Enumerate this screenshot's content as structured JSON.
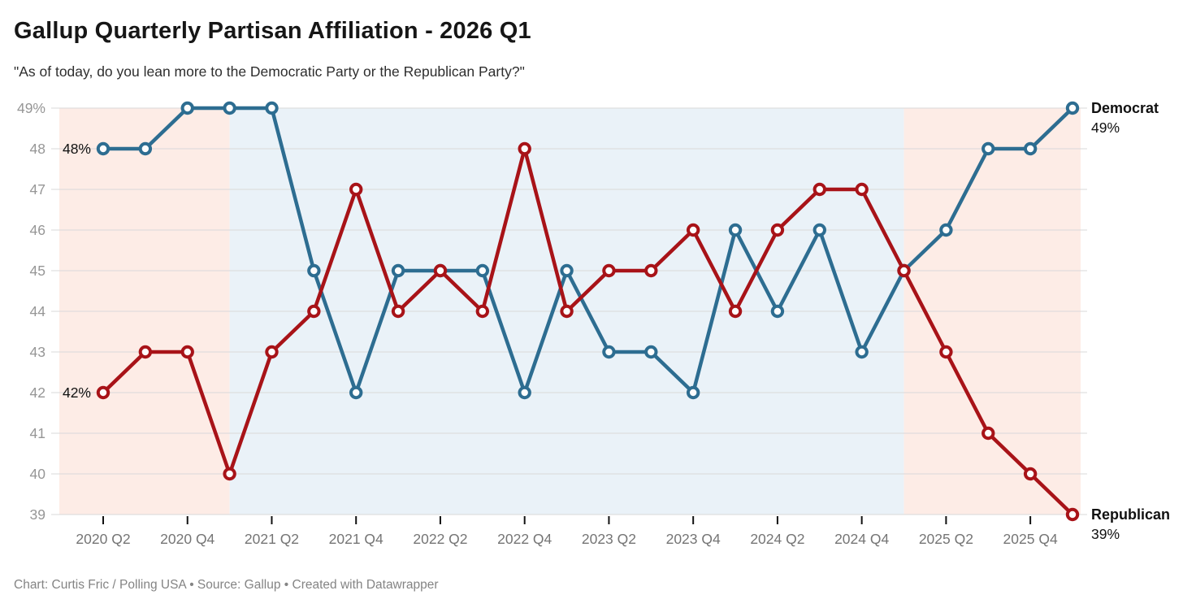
{
  "header": {
    "title": "Gallup Quarterly Partisan Affiliation - 2026 Q1",
    "subtitle": "\"As of today, do you lean more to the Democratic Party or the Republican Party?\""
  },
  "footer": {
    "text": "Chart: Curtis Fric / Polling USA • Source: Gallup • Created with Datawrapper"
  },
  "chart_data": {
    "type": "line",
    "title": "Gallup Quarterly Partisan Affiliation - 2026 Q1",
    "subtitle": "\"As of today, do you lean more to the Democratic Party or the Republican Party?\"",
    "xlabel": "",
    "ylabel": "",
    "ylim": [
      39,
      49
    ],
    "grid": true,
    "legend_position": "line-end-labels",
    "categories": [
      "2020 Q2",
      "2020 Q3",
      "2020 Q4",
      "2021 Q1",
      "2021 Q2",
      "2021 Q3",
      "2021 Q4",
      "2022 Q1",
      "2022 Q2",
      "2022 Q3",
      "2022 Q4",
      "2023 Q1",
      "2023 Q2",
      "2023 Q3",
      "2023 Q4",
      "2024 Q1",
      "2024 Q2",
      "2024 Q3",
      "2024 Q4",
      "2025 Q1",
      "2025 Q2",
      "2025 Q3",
      "2025 Q4",
      "2026 Q1"
    ],
    "x_tick_labels": [
      "2020 Q2",
      "2020 Q4",
      "2021 Q2",
      "2021 Q4",
      "2022 Q2",
      "2022 Q4",
      "2023 Q2",
      "2023 Q4",
      "2024 Q2",
      "2024 Q4",
      "2025 Q2",
      "2025 Q4"
    ],
    "x_tick_every": 2,
    "y_tick_labels": [
      "49%",
      "48",
      "47",
      "46",
      "45",
      "44",
      "43",
      "42",
      "41",
      "40",
      "39"
    ],
    "series": [
      {
        "name": "Democrat",
        "color": "#2d6d91",
        "start_value_label": "48%",
        "end_value_label": "49%",
        "values": [
          48,
          48,
          49,
          49,
          49,
          45,
          42,
          45,
          45,
          45,
          42,
          45,
          43,
          43,
          42,
          46,
          44,
          46,
          43,
          45,
          46,
          48,
          48,
          49
        ]
      },
      {
        "name": "Republican",
        "color": "#a81318",
        "start_value_label": "42%",
        "end_value_label": "39%",
        "values": [
          42,
          43,
          43,
          40,
          43,
          44,
          47,
          44,
          45,
          44,
          48,
          44,
          45,
          45,
          46,
          44,
          46,
          47,
          47,
          45,
          43,
          41,
          40,
          39
        ]
      }
    ],
    "bands": [
      {
        "name": "republican-presidency",
        "from": "start",
        "to": "2021 Q1",
        "color": "#fdece6"
      },
      {
        "name": "democratic-presidency",
        "from": "2021 Q1",
        "to": "2025 Q1",
        "color": "#eaf2f8"
      },
      {
        "name": "republican-presidency",
        "from": "2025 Q1",
        "to": "end",
        "color": "#fdece6"
      }
    ],
    "gridline_color": "#d9d9d9",
    "tick_color": "#111111"
  }
}
